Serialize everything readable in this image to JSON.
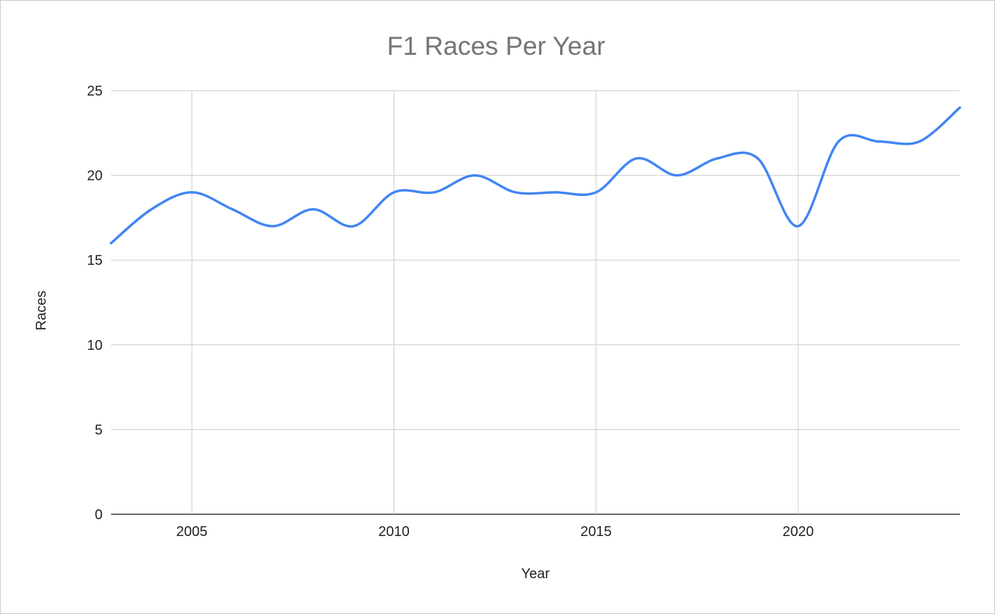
{
  "chart_data": {
    "type": "line",
    "title": "F1 Races Per Year",
    "xlabel": "Year",
    "ylabel": "Races",
    "xlim": [
      2003,
      2024
    ],
    "ylim": [
      0,
      25
    ],
    "x_ticks": [
      2005,
      2010,
      2015,
      2020
    ],
    "y_ticks": [
      0,
      5,
      10,
      15,
      20,
      25
    ],
    "grid": true,
    "legend": "none",
    "smooth": true,
    "series": [
      {
        "color": "#4285f4",
        "x": [
          2003,
          2004,
          2005,
          2006,
          2007,
          2008,
          2009,
          2010,
          2011,
          2012,
          2013,
          2014,
          2015,
          2016,
          2017,
          2018,
          2019,
          2020,
          2021,
          2022,
          2023,
          2024
        ],
        "y": [
          16,
          18,
          19,
          18,
          17,
          18,
          17,
          19,
          19,
          20,
          19,
          19,
          19,
          21,
          20,
          21,
          21,
          17,
          22,
          22,
          22,
          24
        ]
      }
    ]
  }
}
